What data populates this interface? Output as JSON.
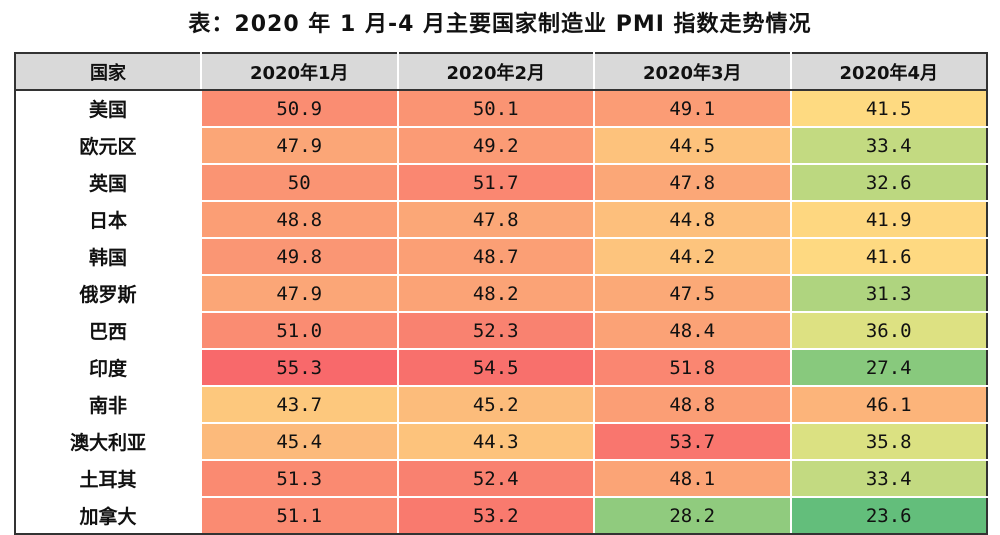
{
  "title": "表：2020 年 1 月-4 月主要国家制造业 PMI 指数走势情况",
  "headers": [
    "国家",
    "2020年1月",
    "2020年2月",
    "2020年3月",
    "2020年4月"
  ],
  "rows": [
    {
      "country": "美国",
      "values": [
        "50.9",
        "50.1",
        "49.1",
        "41.5"
      ]
    },
    {
      "country": "欧元区",
      "values": [
        "47.9",
        "49.2",
        "44.5",
        "33.4"
      ]
    },
    {
      "country": "英国",
      "values": [
        "50",
        "51.7",
        "47.8",
        "32.6"
      ]
    },
    {
      "country": "日本",
      "values": [
        "48.8",
        "47.8",
        "44.8",
        "41.9"
      ]
    },
    {
      "country": "韩国",
      "values": [
        "49.8",
        "48.7",
        "44.2",
        "41.6"
      ]
    },
    {
      "country": "俄罗斯",
      "values": [
        "47.9",
        "48.2",
        "47.5",
        "31.3"
      ]
    },
    {
      "country": "巴西",
      "values": [
        "51.0",
        "52.3",
        "48.4",
        "36.0"
      ]
    },
    {
      "country": "印度",
      "values": [
        "55.3",
        "54.5",
        "51.8",
        "27.4"
      ]
    },
    {
      "country": "南非",
      "values": [
        "43.7",
        "45.2",
        "48.8",
        "46.1"
      ]
    },
    {
      "country": "澳大利亚",
      "values": [
        "45.4",
        "44.3",
        "53.7",
        "35.8"
      ]
    },
    {
      "country": "土耳其",
      "values": [
        "51.3",
        "52.4",
        "48.1",
        "33.4"
      ]
    },
    {
      "country": "加拿大",
      "values": [
        "51.1",
        "53.2",
        "28.2",
        "23.6"
      ]
    }
  ]
}
